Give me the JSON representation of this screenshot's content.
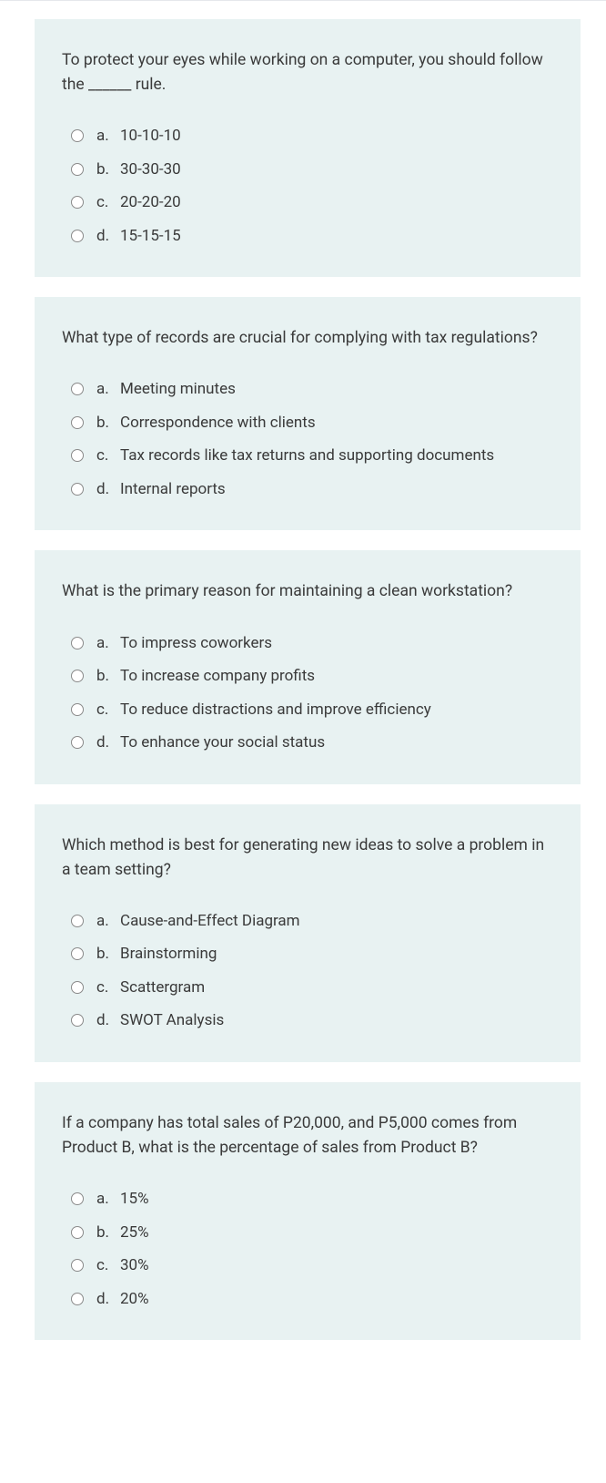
{
  "colors": {
    "card_bg": "#e8f2f2",
    "text": "#3a3a3a",
    "radio_border": "#8a8a8a",
    "page_border": "#e5e7eb"
  },
  "questions": [
    {
      "prompt": "To protect your eyes while working on a computer, you should follow the ______ rule.",
      "options": [
        {
          "letter": "a.",
          "text": "10-10-10"
        },
        {
          "letter": "b.",
          "text": "30-30-30"
        },
        {
          "letter": "c.",
          "text": "20-20-20"
        },
        {
          "letter": "d.",
          "text": "15-15-15"
        }
      ]
    },
    {
      "prompt": "What type of records are crucial for complying with tax regulations?",
      "options": [
        {
          "letter": "a.",
          "text": "Meeting minutes"
        },
        {
          "letter": "b.",
          "text": "Correspondence with clients"
        },
        {
          "letter": "c.",
          "text": "Tax records like tax returns and supporting documents"
        },
        {
          "letter": "d.",
          "text": "Internal reports"
        }
      ]
    },
    {
      "prompt": "What is the primary reason for maintaining a clean workstation?",
      "options": [
        {
          "letter": "a.",
          "text": "To impress coworkers"
        },
        {
          "letter": "b.",
          "text": "To increase company profits"
        },
        {
          "letter": "c.",
          "text": "To reduce distractions and improve efficiency"
        },
        {
          "letter": "d.",
          "text": "To enhance your social status"
        }
      ]
    },
    {
      "prompt": "Which method is best for generating new ideas to solve a problem in a team setting?",
      "options": [
        {
          "letter": "a.",
          "text": "Cause-and-Effect Diagram"
        },
        {
          "letter": "b.",
          "text": "Brainstorming"
        },
        {
          "letter": "c.",
          "text": "Scattergram"
        },
        {
          "letter": "d.",
          "text": "SWOT Analysis"
        }
      ]
    },
    {
      "prompt": "If a company has total sales of P20,000, and P5,000 comes from Product B, what is the percentage of sales from Product B?",
      "options": [
        {
          "letter": "a.",
          "text": "15%"
        },
        {
          "letter": "b.",
          "text": "25%"
        },
        {
          "letter": "c.",
          "text": "30%"
        },
        {
          "letter": "d.",
          "text": "20%"
        }
      ]
    }
  ]
}
